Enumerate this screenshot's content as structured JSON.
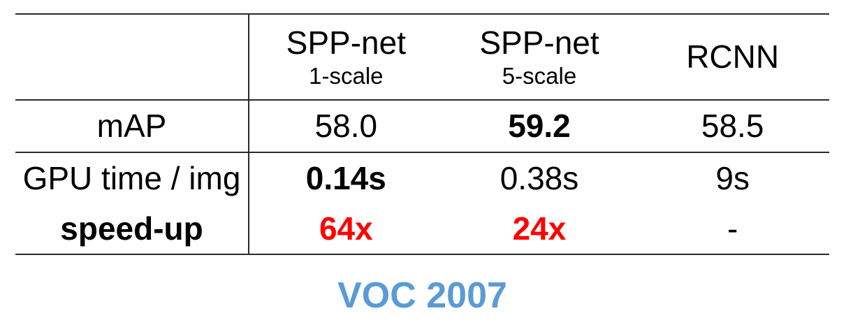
{
  "table": {
    "columns": [
      {
        "title": ""
      },
      {
        "title": "SPP-net",
        "subtitle": "1-scale"
      },
      {
        "title": "SPP-net",
        "subtitle": "5-scale"
      },
      {
        "title": "RCNN"
      }
    ],
    "rows": [
      {
        "label": "mAP",
        "values": [
          "58.0",
          "59.2",
          "58.5"
        ]
      },
      {
        "label": "GPU time / img",
        "values": [
          "0.14s",
          "0.38s",
          "9s"
        ]
      },
      {
        "label": "speed-up",
        "values": [
          "64x",
          "24x",
          "-"
        ]
      }
    ]
  },
  "caption": "VOC 2007",
  "colors": {
    "text": "#000000",
    "grid_line": "#2b2b2b",
    "highlight_red": "#FF0000",
    "caption_blue": "#5B9BD5"
  },
  "emphasis": {
    "bold_cells": [
      "mAP 5-scale (59.2)",
      "GPU time 1-scale (0.14s)",
      "speed-up row label"
    ],
    "red_cells": [
      "speed-up 1-scale (64x)",
      "speed-up 5-scale (24x)"
    ]
  }
}
